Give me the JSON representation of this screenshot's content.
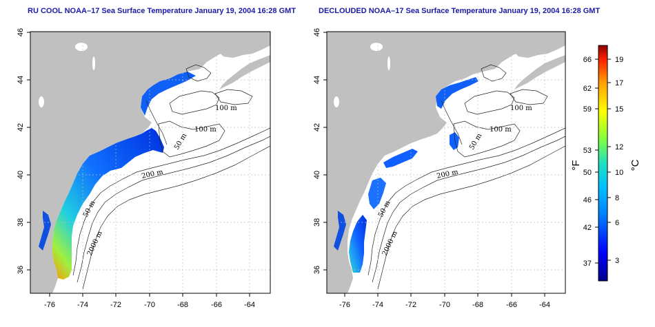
{
  "panels": [
    {
      "title": "RU COOL NOAA–17 Sea Surface Temperature January 19, 2004 16:28 GMT",
      "x_ticks": [
        "-76",
        "-74",
        "-72",
        "-70",
        "-68",
        "-66",
        "-64"
      ],
      "y_ticks": [
        "36",
        "38",
        "40",
        "42",
        "44",
        "46"
      ],
      "contour_labels": [
        "100 m",
        "100 m",
        "50 m",
        "200 m",
        "50 m",
        "2000 m"
      ]
    },
    {
      "title": "DECLOUDED NOAA–17 Sea Surface Temperature January 19, 2004 16:28 GMT",
      "x_ticks": [
        "-76",
        "-74",
        "-72",
        "-70",
        "-68",
        "-66",
        "-64"
      ],
      "y_ticks": [
        "36",
        "38",
        "40",
        "42",
        "44",
        "46"
      ],
      "contour_labels": [
        "100 m",
        "100 m",
        "50 m",
        "200 m",
        "50 m",
        "2000 m"
      ]
    }
  ],
  "colorbar": {
    "fahrenheit_label": "°F",
    "celsius_label": "°C",
    "fahrenheit_ticks": [
      "66",
      "62",
      "59",
      "53",
      "50",
      "46",
      "42",
      "37"
    ],
    "celsius_ticks": [
      "19",
      "17",
      "15",
      "12",
      "10",
      "8",
      "6",
      "3"
    ],
    "gradient_colors": [
      "#00008b",
      "#0000ff",
      "#0080ff",
      "#00c0ff",
      "#20e0c0",
      "#80ff40",
      "#ffff00",
      "#ffa000",
      "#ff2000",
      "#8b0000"
    ]
  },
  "colors": {
    "land": "#c0c0c0",
    "ocean": "#ffffff",
    "grid": "#bdbdbd",
    "title": "#1a1aa6"
  }
}
